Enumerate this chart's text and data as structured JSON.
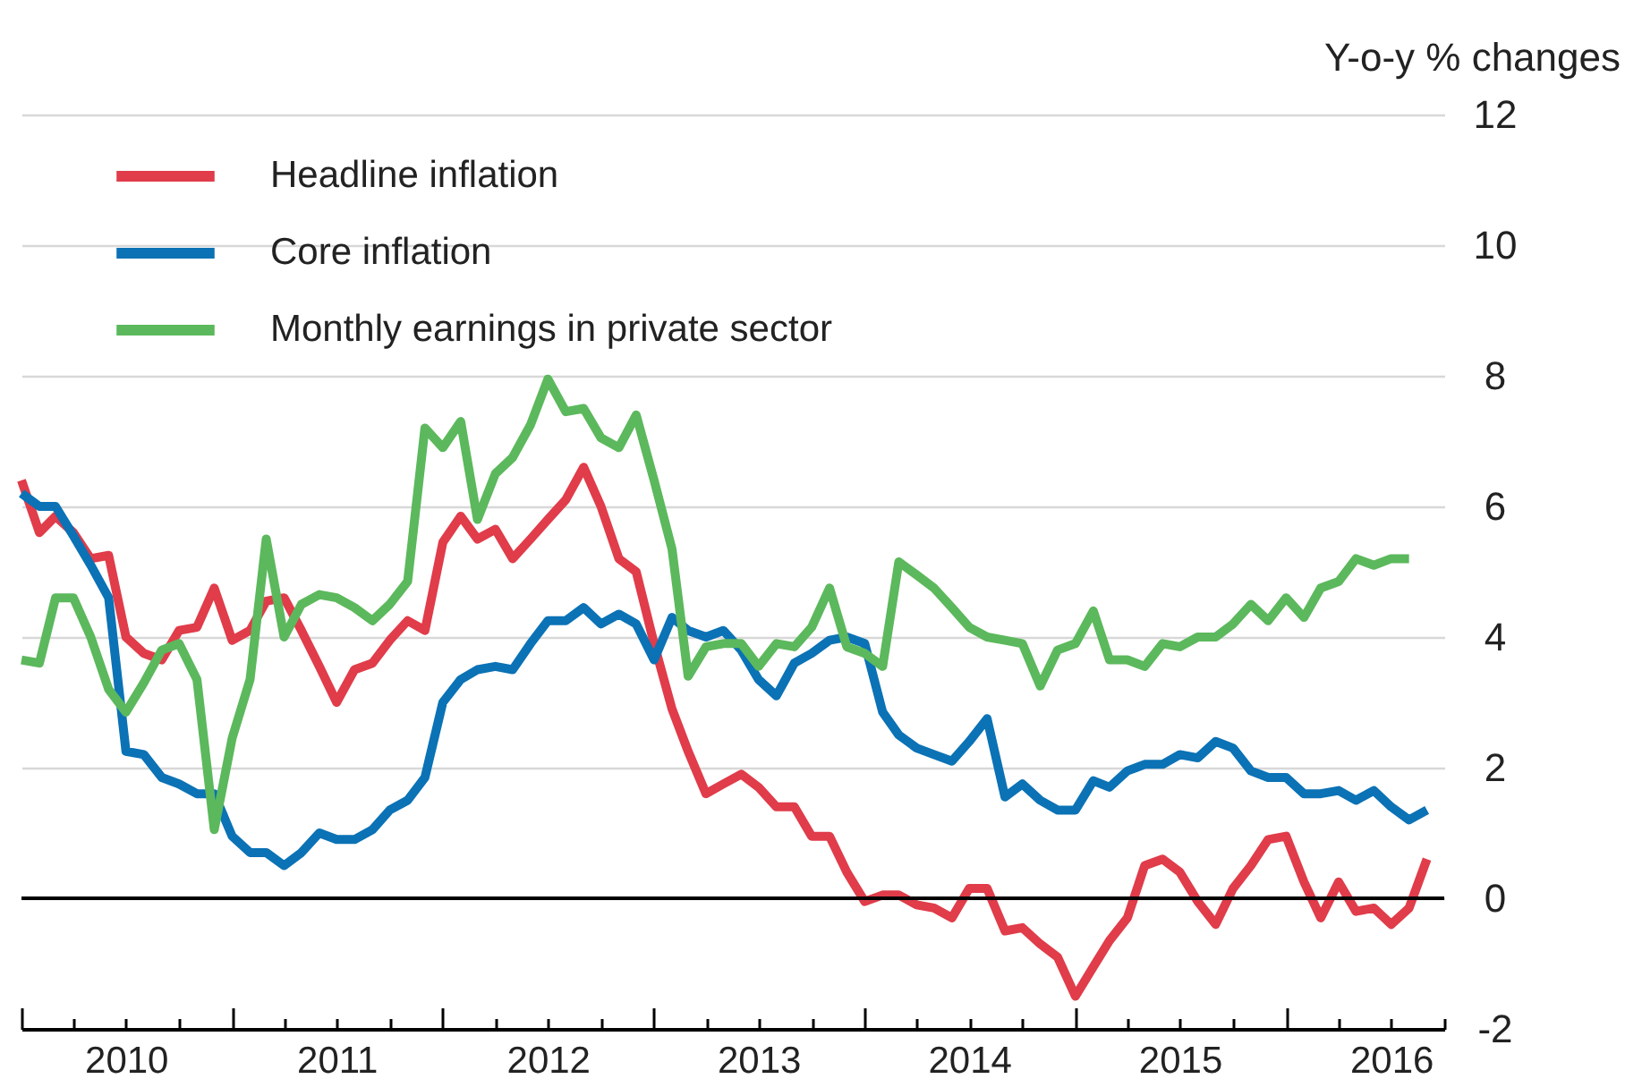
{
  "chart_data": {
    "type": "line",
    "ylabel": "Y-o-y % changes",
    "legend": "top left",
    "grid": "y",
    "line_style": "solid",
    "marker": "none",
    "x": [
      "2010-01",
      "2010-02",
      "2010-03",
      "2010-04",
      "2010-05",
      "2010-06",
      "2010-07",
      "2010-08",
      "2010-09",
      "2010-10",
      "2010-11",
      "2010-12",
      "2011-01",
      "2011-02",
      "2011-03",
      "2011-04",
      "2011-05",
      "2011-06",
      "2011-07",
      "2011-08",
      "2011-09",
      "2011-10",
      "2011-11",
      "2011-12",
      "2012-01",
      "2012-02",
      "2012-03",
      "2012-04",
      "2012-05",
      "2012-06",
      "2012-07",
      "2012-08",
      "2012-09",
      "2012-10",
      "2012-11",
      "2012-12",
      "2013-01",
      "2013-02",
      "2013-03",
      "2013-04",
      "2013-05",
      "2013-06",
      "2013-07",
      "2013-08",
      "2013-09",
      "2013-10",
      "2013-11",
      "2013-12",
      "2014-01",
      "2014-02",
      "2014-03",
      "2014-04",
      "2014-05",
      "2014-06",
      "2014-07",
      "2014-08",
      "2014-09",
      "2014-10",
      "2014-11",
      "2014-12",
      "2015-01",
      "2015-02",
      "2015-03",
      "2015-04",
      "2015-05",
      "2015-06",
      "2015-07",
      "2015-08",
      "2015-09",
      "2015-10",
      "2015-11",
      "2015-12",
      "2016-01",
      "2016-02",
      "2016-03",
      "2016-04",
      "2016-05",
      "2016-06",
      "2016-07",
      "2016-08",
      "2016-09"
    ],
    "series": [
      {
        "name": "Headline inflation",
        "color": "#e03c4a",
        "values": [
          6.4,
          5.6,
          5.85,
          5.6,
          5.2,
          5.25,
          4.0,
          3.75,
          3.65,
          4.1,
          4.15,
          4.75,
          3.95,
          4.1,
          4.55,
          4.6,
          4.1,
          3.55,
          3.0,
          3.5,
          3.6,
          3.95,
          4.25,
          4.1,
          5.45,
          5.85,
          5.5,
          5.65,
          5.2,
          5.5,
          5.8,
          6.1,
          6.6,
          6.0,
          5.2,
          5.0,
          3.9,
          2.9,
          2.25,
          1.6,
          1.75,
          1.9,
          1.7,
          1.4,
          1.4,
          0.95,
          0.95,
          0.4,
          -0.05,
          0.05,
          0.05,
          -0.1,
          -0.15,
          -0.3,
          0.15,
          0.15,
          -0.5,
          -0.45,
          -0.7,
          -0.9,
          -1.5,
          -1.05,
          -0.65,
          -0.3,
          0.5,
          0.6,
          0.4,
          -0.05,
          -0.4,
          0.15,
          0.5,
          0.9,
          0.95,
          0.25,
          -0.3,
          0.25,
          -0.2,
          -0.15,
          -0.4,
          -0.15,
          0.6
        ]
      },
      {
        "name": "Core inflation",
        "color": "#0b72b5",
        "values": [
          6.2,
          6.0,
          6.0,
          5.55,
          5.1,
          4.6,
          2.25,
          2.2,
          1.85,
          1.75,
          1.6,
          1.6,
          0.95,
          0.7,
          0.7,
          0.5,
          0.7,
          1.0,
          0.9,
          0.9,
          1.05,
          1.35,
          1.5,
          1.85,
          3.0,
          3.35,
          3.5,
          3.55,
          3.5,
          3.9,
          4.25,
          4.25,
          4.45,
          4.2,
          4.35,
          4.2,
          3.65,
          4.3,
          4.1,
          4.0,
          4.1,
          3.8,
          3.35,
          3.1,
          3.6,
          3.75,
          3.95,
          4.0,
          3.9,
          2.85,
          2.5,
          2.3,
          2.2,
          2.1,
          2.4,
          2.75,
          1.55,
          1.75,
          1.5,
          1.35,
          1.35,
          1.8,
          1.7,
          1.95,
          2.05,
          2.05,
          2.2,
          2.15,
          2.4,
          2.3,
          1.95,
          1.85,
          1.85,
          1.6,
          1.6,
          1.65,
          1.5,
          1.65,
          1.4,
          1.2,
          1.35
        ]
      },
      {
        "name": "Monthly earnings in private sector",
        "color": "#5cb85c",
        "values": [
          3.65,
          3.6,
          4.6,
          4.6,
          4.0,
          3.2,
          2.85,
          3.3,
          3.8,
          3.9,
          3.35,
          1.05,
          2.45,
          3.35,
          5.5,
          4.0,
          4.5,
          4.65,
          4.6,
          4.45,
          4.25,
          4.5,
          4.85,
          7.2,
          6.9,
          7.3,
          5.8,
          6.5,
          6.75,
          7.25,
          7.95,
          7.45,
          7.5,
          7.05,
          6.9,
          7.4,
          6.4,
          5.35,
          3.4,
          3.85,
          3.9,
          3.9,
          3.55,
          3.9,
          3.85,
          4.15,
          4.75,
          3.85,
          3.75,
          3.55,
          5.15,
          4.95,
          4.75,
          4.45,
          4.15,
          4.0,
          3.95,
          3.9,
          3.25,
          3.8,
          3.9,
          4.4,
          3.65,
          3.65,
          3.55,
          3.9,
          3.85,
          4.0,
          4.0,
          4.2,
          4.5,
          4.25,
          4.6,
          4.3,
          4.75,
          4.85,
          5.2,
          5.1,
          5.2,
          5.2,
          null
        ]
      }
    ],
    "xlim": [
      "2010-01",
      "2016-10"
    ],
    "xticks": [
      {
        "value": "2010-01",
        "label": null
      },
      {
        "value": "2010-04",
        "label": null
      },
      {
        "value": "2010-07",
        "label": "2010"
      },
      {
        "value": "2010-10",
        "label": null
      },
      {
        "value": "2011-01",
        "label": null
      },
      {
        "value": "2011-04",
        "label": null
      },
      {
        "value": "2011-07",
        "label": "2011"
      },
      {
        "value": "2011-10",
        "label": null
      },
      {
        "value": "2012-01",
        "label": null
      },
      {
        "value": "2012-04",
        "label": null
      },
      {
        "value": "2012-07",
        "label": "2012"
      },
      {
        "value": "2012-10",
        "label": null
      },
      {
        "value": "2013-01",
        "label": null
      },
      {
        "value": "2013-04",
        "label": null
      },
      {
        "value": "2013-07",
        "label": "2013"
      },
      {
        "value": "2013-10",
        "label": null
      },
      {
        "value": "2014-01",
        "label": null
      },
      {
        "value": "2014-04",
        "label": null
      },
      {
        "value": "2014-07",
        "label": "2014"
      },
      {
        "value": "2014-10",
        "label": null
      },
      {
        "value": "2015-01",
        "label": null
      },
      {
        "value": "2015-04",
        "label": null
      },
      {
        "value": "2015-07",
        "label": "2015"
      },
      {
        "value": "2015-10",
        "label": null
      },
      {
        "value": "2016-01",
        "label": null
      },
      {
        "value": "2016-04",
        "label": null
      },
      {
        "value": "2016-07",
        "label": "2016"
      },
      {
        "value": "2016-10",
        "label": null
      }
    ],
    "ylim": [
      -2,
      12
    ],
    "yticks": [
      -2,
      0,
      2,
      4,
      6,
      8,
      10,
      12
    ],
    "ref_lines": [
      {
        "axis": "y",
        "value": 0,
        "color": "#000000"
      }
    ]
  }
}
